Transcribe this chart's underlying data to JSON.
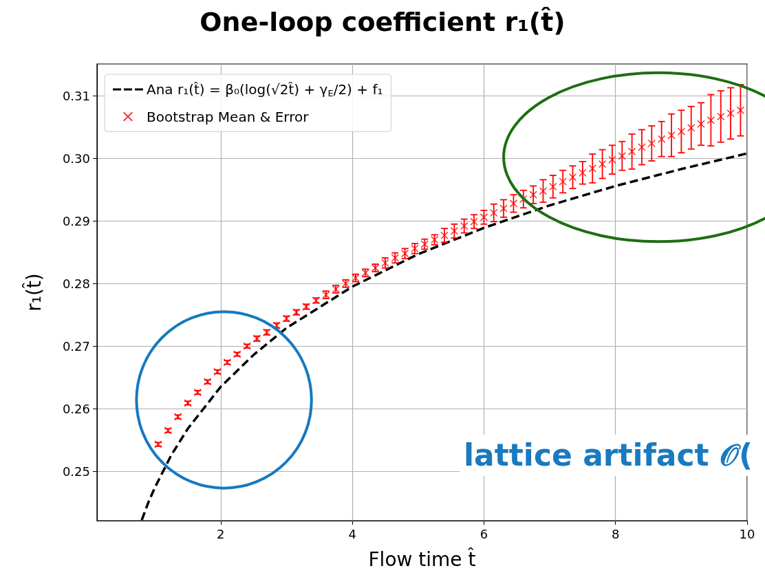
{
  "chart_data": {
    "type": "scatter",
    "title": "One-loop coefficient r₁(t̂)",
    "xlabel": "Flow time t̂",
    "ylabel": "r₁(t̂)",
    "series": [
      {
        "type": "line",
        "name": "Ana r₁(t̂) = β₀(log(√2t̂) + γ$_{E}$/2) + f₁",
        "color": "#000000",
        "line_style": "dashed",
        "marker": "none",
        "x": [
          0.8,
          0.9,
          1,
          1.25,
          1.5,
          2,
          2.5,
          3,
          4,
          5,
          6,
          7,
          8,
          9,
          10
        ],
        "values": [
          0.2422,
          0.245,
          0.2474,
          0.2526,
          0.2568,
          0.2635,
          0.2686,
          0.2729,
          0.2795,
          0.2847,
          0.2889,
          0.2925,
          0.2956,
          0.2983,
          0.3008
        ]
      },
      {
        "name": "Bootstrap Mean & Error",
        "color": "#ff0000",
        "marker": "cross",
        "x": [
          1.05,
          1.2,
          1.35,
          1.5,
          1.65,
          1.8,
          1.95,
          2.1,
          2.25,
          2.4,
          2.55,
          2.7,
          2.85,
          3.0,
          3.15,
          3.3,
          3.45,
          3.6,
          3.75,
          3.9,
          4.05,
          4.2,
          4.35,
          4.5,
          4.65,
          4.8,
          4.95,
          5.1,
          5.25,
          5.4,
          5.55,
          5.7,
          5.85,
          6.0,
          6.15,
          6.3,
          6.45,
          6.6,
          6.75,
          6.9,
          7.05,
          7.2,
          7.35,
          7.5,
          7.65,
          7.8,
          7.95,
          8.1,
          8.25,
          8.4,
          8.55,
          8.7,
          8.85,
          9.0,
          9.15,
          9.3,
          9.45,
          9.6,
          9.75,
          9.9
        ],
        "values": [
          0.2543,
          0.2565,
          0.2587,
          0.2609,
          0.2626,
          0.2643,
          0.2659,
          0.2674,
          0.2687,
          0.27,
          0.2712,
          0.2722,
          0.2733,
          0.2744,
          0.2754,
          0.2763,
          0.2773,
          0.2782,
          0.2791,
          0.28,
          0.2809,
          0.2817,
          0.2825,
          0.2833,
          0.2841,
          0.2848,
          0.2856,
          0.2863,
          0.287,
          0.2877,
          0.2884,
          0.2892,
          0.2899,
          0.2906,
          0.2913,
          0.292,
          0.2928,
          0.2935,
          0.2942,
          0.2948,
          0.2955,
          0.2963,
          0.297,
          0.2977,
          0.2984,
          0.2991,
          0.2998,
          0.3004,
          0.3011,
          0.3018,
          0.3024,
          0.3031,
          0.3037,
          0.3043,
          0.3049,
          0.3055,
          0.3061,
          0.3067,
          0.3072,
          0.3077
        ],
        "errors": [
          0.0003,
          0.0003,
          0.0003,
          0.0003,
          0.0003,
          0.0003,
          0.0003,
          0.0003,
          0.0003,
          0.0003,
          0.0004,
          0.0004,
          0.0004,
          0.0004,
          0.0004,
          0.0004,
          0.0004,
          0.0006,
          0.0006,
          0.0006,
          0.0006,
          0.0006,
          0.0006,
          0.0008,
          0.0008,
          0.0008,
          0.0008,
          0.0008,
          0.0008,
          0.0011,
          0.0011,
          0.0011,
          0.0011,
          0.0011,
          0.0014,
          0.0014,
          0.0014,
          0.0014,
          0.0014,
          0.0018,
          0.0018,
          0.0018,
          0.0018,
          0.0018,
          0.0023,
          0.0023,
          0.0023,
          0.0023,
          0.0028,
          0.0028,
          0.0028,
          0.0028,
          0.0034,
          0.0034,
          0.0034,
          0.0034,
          0.0041,
          0.0041,
          0.0041,
          0.0041
        ]
      }
    ],
    "xlim": [
      0.12,
      10
    ],
    "xticks": [
      2,
      4,
      6,
      8,
      10
    ],
    "ylim": [
      0.2421,
      0.3151
    ],
    "yticks": [
      0.25,
      0.26,
      0.27,
      0.28,
      0.29,
      {
        "value": 0.3,
        "label": "0.30"
      },
      0.31
    ],
    "grid": true,
    "legend": "top left",
    "annotations": [
      "lattice artifact 𝒪("
    ]
  }
}
